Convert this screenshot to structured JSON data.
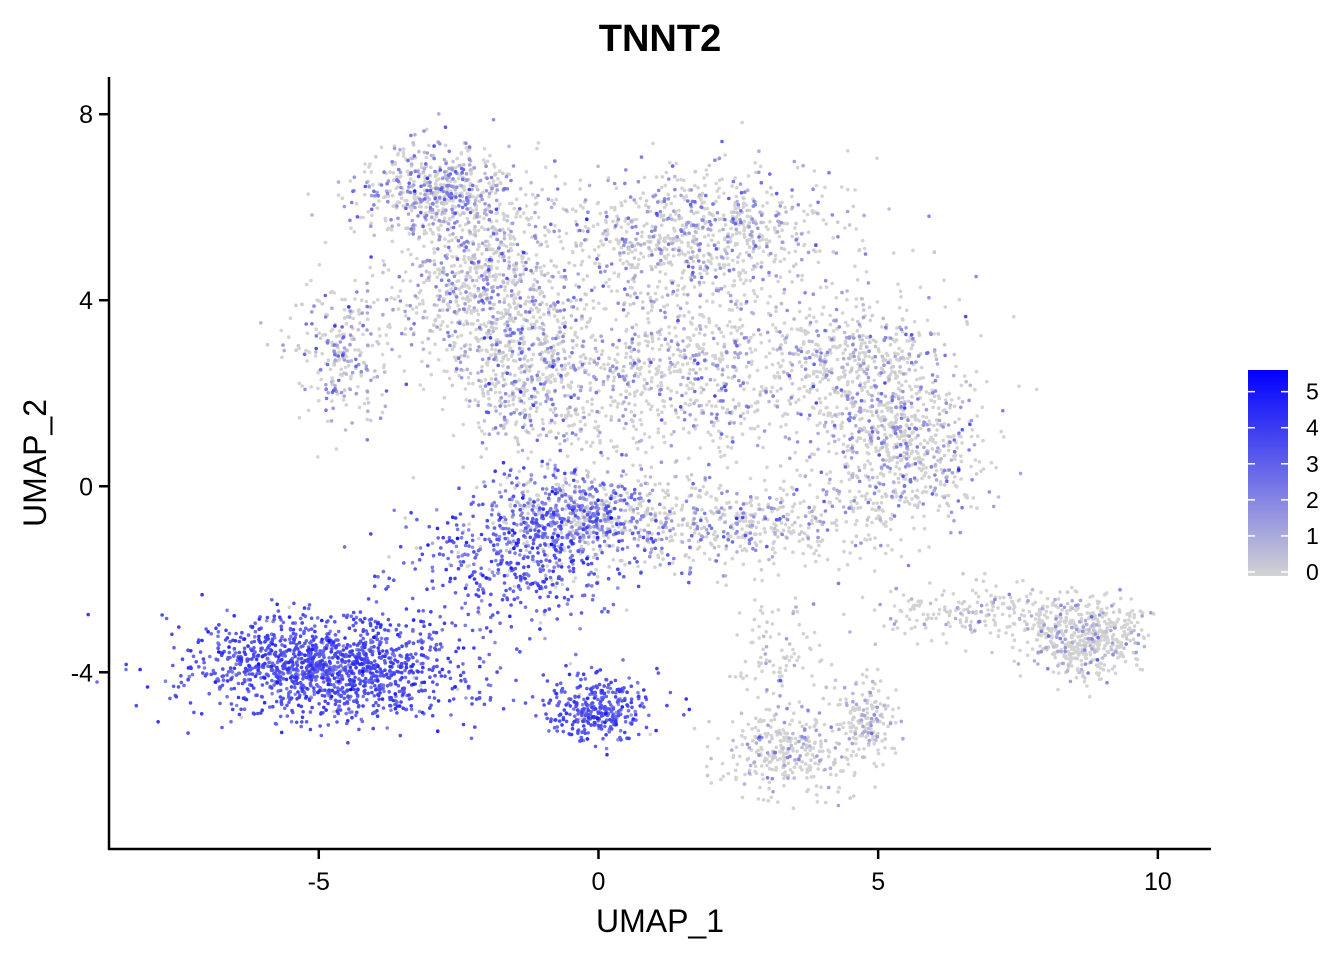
{
  "chart_data": {
    "type": "scatter",
    "title": "TNNT2",
    "xlabel": "UMAP_1",
    "ylabel": "UMAP_2",
    "xlim": [
      -8.75,
      10.95
    ],
    "ylim": [
      -7.8,
      8.8
    ],
    "x_ticks": [
      -5,
      0,
      5,
      10
    ],
    "y_ticks": [
      -4,
      0,
      4,
      8
    ],
    "x_tick_labels": [
      "-5",
      "0",
      "5",
      "10"
    ],
    "y_tick_labels": [
      "-4",
      "0",
      "4",
      "8"
    ],
    "grid": false,
    "legend": {
      "placement": "right",
      "title": "",
      "ticks": [
        "0",
        "1",
        "2",
        "3",
        "4",
        "5"
      ],
      "min": 0,
      "max": 5.6,
      "low_color": "#d3d3d3",
      "high_color": "#0000ff"
    },
    "point_color_scale": {
      "low": "#d3d3d3",
      "high": "#0000ff"
    },
    "clusters": [
      {
        "cx": -4.8,
        "cy": -3.9,
        "sx": 1.5,
        "sy": 0.7,
        "n": 1400,
        "expr_mean": 3.3,
        "expr_sd": 0.6,
        "zero_frac": 0.02
      },
      {
        "cx": 0.0,
        "cy": -4.8,
        "sx": 0.6,
        "sy": 0.45,
        "n": 330,
        "expr_mean": 3.2,
        "expr_sd": 0.6,
        "zero_frac": 0.03
      },
      {
        "cx": -1.5,
        "cy": -1.6,
        "sx": 1.2,
        "sy": 0.9,
        "n": 500,
        "expr_mean": 3.0,
        "expr_sd": 0.8,
        "zero_frac": 0.1
      },
      {
        "cx": -0.3,
        "cy": -0.6,
        "sx": 0.9,
        "sy": 0.6,
        "n": 600,
        "expr_mean": 2.2,
        "expr_sd": 0.9,
        "zero_frac": 0.35
      },
      {
        "cx": -2.9,
        "cy": 6.4,
        "sx": 0.9,
        "sy": 0.6,
        "n": 550,
        "expr_mean": 1.6,
        "expr_sd": 0.9,
        "zero_frac": 0.55
      },
      {
        "cx": -2.0,
        "cy": 4.3,
        "sx": 1.0,
        "sy": 1.2,
        "n": 800,
        "expr_mean": 1.4,
        "expr_sd": 0.9,
        "zero_frac": 0.6
      },
      {
        "cx": -4.6,
        "cy": 2.9,
        "sx": 0.6,
        "sy": 0.9,
        "n": 260,
        "expr_mean": 1.5,
        "expr_sd": 0.9,
        "zero_frac": 0.55
      },
      {
        "cx": -1.2,
        "cy": 2.2,
        "sx": 0.8,
        "sy": 1.2,
        "n": 500,
        "expr_mean": 1.4,
        "expr_sd": 1.0,
        "zero_frac": 0.6
      },
      {
        "cx": 1.8,
        "cy": 5.5,
        "sx": 1.6,
        "sy": 0.8,
        "n": 800,
        "expr_mean": 1.5,
        "expr_sd": 0.9,
        "zero_frac": 0.6
      },
      {
        "cx": 1.5,
        "cy": 2.6,
        "sx": 1.6,
        "sy": 1.3,
        "n": 800,
        "expr_mean": 1.4,
        "expr_sd": 0.9,
        "zero_frac": 0.65
      },
      {
        "cx": 4.6,
        "cy": 2.7,
        "sx": 1.0,
        "sy": 1.0,
        "n": 450,
        "expr_mean": 1.3,
        "expr_sd": 0.9,
        "zero_frac": 0.6
      },
      {
        "cx": 5.4,
        "cy": 0.8,
        "sx": 0.9,
        "sy": 1.2,
        "n": 700,
        "expr_mean": 1.3,
        "expr_sd": 0.9,
        "zero_frac": 0.65
      },
      {
        "cx": 2.4,
        "cy": -0.8,
        "sx": 1.5,
        "sy": 0.6,
        "n": 500,
        "expr_mean": 1.4,
        "expr_sd": 0.9,
        "zero_frac": 0.6
      },
      {
        "cx": 6.8,
        "cy": -2.7,
        "sx": 1.3,
        "sy": 0.35,
        "n": 220,
        "expr_mean": 1.0,
        "expr_sd": 0.8,
        "zero_frac": 0.8
      },
      {
        "cx": 8.7,
        "cy": -3.3,
        "sx": 0.65,
        "sy": 0.55,
        "n": 500,
        "expr_mean": 1.0,
        "expr_sd": 0.8,
        "zero_frac": 0.75
      },
      {
        "cx": 3.4,
        "cy": -5.7,
        "sx": 0.8,
        "sy": 0.6,
        "n": 320,
        "expr_mean": 1.0,
        "expr_sd": 0.8,
        "zero_frac": 0.72
      },
      {
        "cx": 4.8,
        "cy": -5.1,
        "sx": 0.35,
        "sy": 0.55,
        "n": 170,
        "expr_mean": 0.9,
        "expr_sd": 0.7,
        "zero_frac": 0.78
      },
      {
        "cx": 3.2,
        "cy": -3.6,
        "sx": 0.5,
        "sy": 0.7,
        "n": 90,
        "expr_mean": 1.0,
        "expr_sd": 0.8,
        "zero_frac": 0.75
      }
    ]
  }
}
